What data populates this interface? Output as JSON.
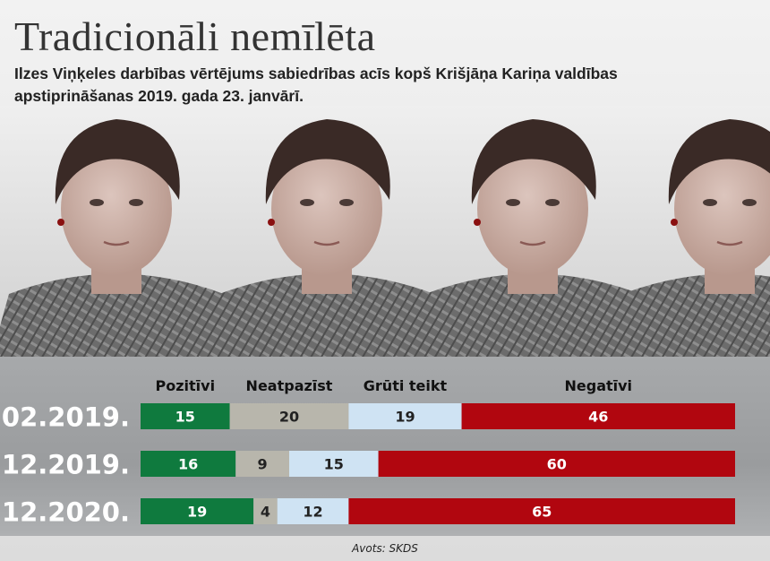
{
  "header": {
    "title": "Tradicionāli nemīlēta",
    "subtitle": "Ilzes Viņķeles darbības vērtējums sabiedrības acīs kopš Krišjāņa Kariņa valdības apstiprināšanas 2019. gada 23. janvārī."
  },
  "photo": {
    "description_icon": "portrait-photo-strip"
  },
  "source": "Avots: SKDS",
  "chart_data": {
    "type": "bar",
    "orientation": "horizontal",
    "stacked": true,
    "categories": [
      "02.2019.",
      "12.2019.",
      "12.2020."
    ],
    "series": [
      {
        "name": "Pozitīvi",
        "color": "#0f7a3e",
        "values": [
          15,
          16,
          19
        ]
      },
      {
        "name": "Neatpazīst",
        "color": "#b8b6ac",
        "values": [
          20,
          9,
          4
        ]
      },
      {
        "name": "Grūti teikt",
        "color": "#cfe3f3",
        "values": [
          19,
          15,
          12
        ]
      },
      {
        "name": "Negatīvi",
        "color": "#b1060f",
        "values": [
          46,
          60,
          65
        ]
      }
    ],
    "label_colors": [
      "#ffffff",
      "#222222",
      "#222222",
      "#ffffff"
    ],
    "xlim": [
      0,
      100
    ],
    "legend": "top"
  }
}
